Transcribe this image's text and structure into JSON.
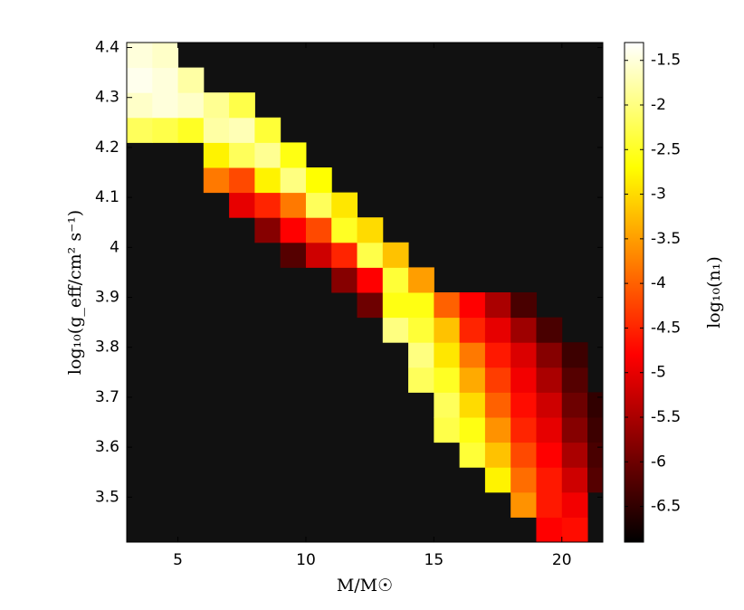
{
  "chart_data": {
    "type": "heatmap",
    "xlabel": "M/M☉",
    "ylabel": "log₁₀(g_eff/cm² s⁻¹)",
    "colorbar_label": "log₁₀(n₁)",
    "colormap": "hot",
    "empty_color": "#111111",
    "xlim": [
      3,
      21.6
    ],
    "ylim": [
      3.41,
      4.41
    ],
    "xticks": [
      5,
      10,
      15,
      20
    ],
    "yticks": [
      3.5,
      3.6,
      3.7,
      3.8,
      3.9,
      4,
      4.1,
      4.2,
      4.3,
      4.4
    ],
    "clim": [
      -6.9,
      -1.3
    ],
    "cticks": [
      -1.5,
      -2,
      -2.5,
      -3,
      -3.5,
      -4,
      -4.5,
      -5,
      -5.5,
      -6,
      -6.5
    ],
    "x_edges": [
      3,
      4,
      5,
      6,
      7,
      8,
      9,
      10,
      11,
      12,
      13,
      14,
      15,
      16,
      17,
      18,
      19,
      20,
      21,
      21.6
    ],
    "y_edges": [
      3.41,
      3.46,
      3.51,
      3.56,
      3.61,
      3.66,
      3.71,
      3.76,
      3.81,
      3.86,
      3.91,
      3.96,
      4.01,
      4.06,
      4.11,
      4.16,
      4.21,
      4.26,
      4.31,
      4.36,
      4.41
    ],
    "z": [
      [
        null,
        null,
        null,
        null,
        null,
        null,
        null,
        null,
        null,
        null,
        null,
        null,
        null,
        null,
        null,
        null,
        -4.8,
        -4.7,
        null
      ],
      [
        null,
        null,
        null,
        null,
        null,
        null,
        null,
        null,
        null,
        null,
        null,
        null,
        null,
        null,
        null,
        -3.6,
        -4.6,
        -4.9,
        null
      ],
      [
        null,
        null,
        null,
        null,
        null,
        null,
        null,
        null,
        null,
        null,
        null,
        null,
        null,
        null,
        -2.8,
        -3.9,
        -4.6,
        -5.2,
        -6.2
      ],
      [
        null,
        null,
        null,
        null,
        null,
        null,
        null,
        null,
        null,
        null,
        null,
        null,
        null,
        -2.4,
        -3.2,
        -4.2,
        -4.8,
        -5.5,
        -6.3
      ],
      [
        null,
        null,
        null,
        null,
        null,
        null,
        null,
        null,
        null,
        null,
        null,
        null,
        -2.3,
        -2.6,
        -3.6,
        -4.5,
        -5.0,
        -5.8,
        -6.4
      ],
      [
        null,
        null,
        null,
        null,
        null,
        null,
        null,
        null,
        null,
        null,
        null,
        null,
        -2.2,
        -3.0,
        -4.0,
        -4.7,
        -5.2,
        -6.0,
        -6.5
      ],
      [
        null,
        null,
        null,
        null,
        null,
        null,
        null,
        null,
        null,
        null,
        null,
        -2.2,
        -2.5,
        -3.4,
        -4.3,
        -4.9,
        -5.5,
        -6.2,
        null
      ],
      [
        null,
        null,
        null,
        null,
        null,
        null,
        null,
        null,
        null,
        null,
        null,
        -2.0,
        -2.9,
        -3.8,
        -4.6,
        -5.1,
        -5.8,
        -6.4,
        null
      ],
      [
        null,
        null,
        null,
        null,
        null,
        null,
        null,
        null,
        null,
        null,
        -2.0,
        -2.4,
        -3.2,
        -4.5,
        -5.0,
        -5.6,
        -6.3,
        null,
        null
      ],
      [
        null,
        null,
        null,
        null,
        null,
        null,
        null,
        null,
        null,
        -6.0,
        -2.6,
        -2.6,
        -4.0,
        -4.8,
        -5.5,
        -6.3,
        null,
        null,
        null
      ],
      [
        null,
        null,
        null,
        null,
        null,
        null,
        null,
        null,
        -5.8,
        -4.8,
        -2.4,
        -3.5,
        null,
        null,
        null,
        null,
        null,
        null,
        null
      ],
      [
        null,
        null,
        null,
        null,
        null,
        null,
        -6.2,
        -5.2,
        -4.5,
        -2.3,
        -3.2,
        null,
        null,
        null,
        null,
        null,
        null,
        null,
        null
      ],
      [
        null,
        null,
        null,
        null,
        null,
        -5.8,
        -4.8,
        -4.2,
        -2.5,
        -3.0,
        null,
        null,
        null,
        null,
        null,
        null,
        null,
        null,
        null
      ],
      [
        null,
        null,
        null,
        null,
        -5.0,
        -4.5,
        -3.8,
        -2.2,
        -2.9,
        null,
        null,
        null,
        null,
        null,
        null,
        null,
        null,
        null,
        null
      ],
      [
        null,
        null,
        null,
        -3.8,
        -4.2,
        -2.8,
        -2.0,
        -2.7,
        null,
        null,
        null,
        null,
        null,
        null,
        null,
        null,
        null,
        null,
        null
      ],
      [
        null,
        null,
        null,
        -2.8,
        -2.2,
        -1.9,
        -2.6,
        null,
        null,
        null,
        null,
        null,
        null,
        null,
        null,
        null,
        null,
        null,
        null
      ],
      [
        -2.2,
        -2.3,
        -2.5,
        -1.8,
        -1.7,
        -2.4,
        null,
        null,
        null,
        null,
        null,
        null,
        null,
        null,
        null,
        null,
        null,
        null,
        null
      ],
      [
        -1.6,
        -1.5,
        -1.6,
        -1.9,
        -2.3,
        null,
        null,
        null,
        null,
        null,
        null,
        null,
        null,
        null,
        null,
        null,
        null,
        null,
        null
      ],
      [
        -1.4,
        -1.5,
        -1.8,
        null,
        null,
        null,
        null,
        null,
        null,
        null,
        null,
        null,
        null,
        null,
        null,
        null,
        null,
        null,
        null
      ],
      [
        -1.5,
        -1.6,
        null,
        null,
        null,
        null,
        null,
        null,
        null,
        null,
        null,
        null,
        null,
        null,
        null,
        null,
        null,
        null,
        null
      ]
    ]
  }
}
